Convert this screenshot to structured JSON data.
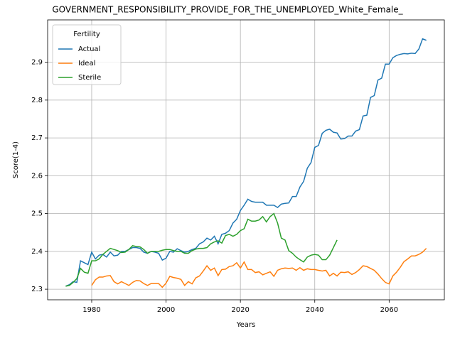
{
  "chart_data": {
    "type": "line",
    "title": "GOVERNMENT_RESPONSIBILITY_PROVIDE_FOR_THE_UNEMPLOYED_White_Female_",
    "xlabel": "Years",
    "ylabel": "Score(1-4)",
    "legend_title": "Fertility",
    "legend": "upper left",
    "grid": true,
    "xlim": [
      1968.15,
      2074.85
    ],
    "ylim": [
      2.272,
      3.012
    ],
    "xticks": [
      1980,
      2000,
      2020,
      2040,
      2060
    ],
    "yticks": [
      2.3,
      2.4,
      2.5,
      2.6,
      2.7,
      2.8,
      2.9
    ],
    "x": [
      1973,
      1974,
      1975,
      1976,
      1977,
      1978,
      1979,
      1980,
      1981,
      1982,
      1983,
      1984,
      1985,
      1986,
      1987,
      1988,
      1989,
      1990,
      1991,
      1992,
      1993,
      1994,
      1995,
      1996,
      1997,
      1998,
      1999,
      2000,
      2001,
      2002,
      2003,
      2004,
      2005,
      2006,
      2007,
      2008,
      2009,
      2010,
      2011,
      2012,
      2013,
      2014,
      2015,
      2016,
      2017,
      2018,
      2019,
      2020,
      2021,
      2022,
      2023,
      2024,
      2025,
      2026,
      2027,
      2028,
      2029,
      2030,
      2031,
      2032,
      2033,
      2034,
      2035,
      2036,
      2037,
      2038,
      2039,
      2040,
      2041,
      2042,
      2043,
      2044,
      2045,
      2046,
      2047,
      2048,
      2049,
      2050,
      2051,
      2052,
      2053,
      2054,
      2055,
      2056,
      2057,
      2058,
      2059,
      2060,
      2061,
      2062,
      2063,
      2064,
      2065,
      2066,
      2067,
      2068,
      2069,
      2070
    ],
    "series": [
      {
        "name": "Actual",
        "color": "#1f77b4",
        "values": [
          2.308,
          2.312,
          2.32,
          2.318,
          2.375,
          2.37,
          2.365,
          2.398,
          2.38,
          2.39,
          2.392,
          2.385,
          2.398,
          2.388,
          2.39,
          2.4,
          2.4,
          2.405,
          2.41,
          2.41,
          2.408,
          2.398,
          2.395,
          2.4,
          2.398,
          2.395,
          2.377,
          2.382,
          2.4,
          2.398,
          2.407,
          2.402,
          2.398,
          2.4,
          2.405,
          2.408,
          2.42,
          2.425,
          2.435,
          2.43,
          2.44,
          2.42,
          2.445,
          2.448,
          2.455,
          2.475,
          2.485,
          2.508,
          2.522,
          2.538,
          2.532,
          2.53,
          2.53,
          2.53,
          2.522,
          2.522,
          2.522,
          2.516,
          2.525,
          2.527,
          2.528,
          2.545,
          2.545,
          2.57,
          2.585,
          2.62,
          2.635,
          2.675,
          2.68,
          2.712,
          2.72,
          2.723,
          2.715,
          2.713,
          2.697,
          2.698,
          2.705,
          2.705,
          2.718,
          2.722,
          2.758,
          2.76,
          2.807,
          2.812,
          2.853,
          2.858,
          2.895,
          2.895,
          2.912,
          2.918,
          2.921,
          2.923,
          2.922,
          2.924,
          2.923,
          2.935,
          2.962,
          2.958
        ]
      },
      {
        "name": "Ideal",
        "color": "#ff7f0e",
        "values": [
          null,
          null,
          null,
          null,
          null,
          null,
          null,
          2.31,
          2.325,
          2.332,
          2.332,
          2.335,
          2.336,
          2.32,
          2.314,
          2.32,
          2.315,
          2.31,
          2.318,
          2.323,
          2.322,
          2.315,
          2.31,
          2.315,
          2.315,
          2.315,
          2.305,
          2.316,
          2.334,
          2.331,
          2.329,
          2.326,
          2.31,
          2.32,
          2.314,
          2.33,
          2.335,
          2.348,
          2.362,
          2.35,
          2.356,
          2.336,
          2.352,
          2.353,
          2.36,
          2.362,
          2.37,
          2.356,
          2.372,
          2.352,
          2.352,
          2.344,
          2.346,
          2.338,
          2.342,
          2.346,
          2.334,
          2.35,
          2.354,
          2.356,
          2.355,
          2.356,
          2.35,
          2.357,
          2.35,
          2.354,
          2.352,
          2.352,
          2.35,
          2.348,
          2.35,
          2.335,
          2.342,
          2.335,
          2.345,
          2.344,
          2.346,
          2.339,
          2.344,
          2.352,
          2.362,
          2.36,
          2.355,
          2.35,
          2.34,
          2.328,
          2.318,
          2.314,
          2.335,
          2.345,
          2.358,
          2.373,
          2.38,
          2.388,
          2.388,
          2.392,
          2.398,
          2.408
        ]
      },
      {
        "name": "Sterile",
        "color": "#2ca02c",
        "values": [
          2.308,
          2.31,
          2.318,
          2.328,
          2.355,
          2.345,
          2.342,
          2.375,
          2.375,
          2.38,
          2.392,
          2.4,
          2.408,
          2.405,
          2.402,
          2.397,
          2.398,
          2.405,
          2.415,
          2.413,
          2.412,
          2.405,
          2.395,
          2.4,
          2.4,
          2.4,
          2.403,
          2.405,
          2.405,
          2.402,
          2.4,
          2.4,
          2.395,
          2.395,
          2.402,
          2.406,
          2.408,
          2.408,
          2.41,
          2.42,
          2.425,
          2.428,
          2.422,
          2.442,
          2.445,
          2.44,
          2.445,
          2.455,
          2.46,
          2.485,
          2.48,
          2.48,
          2.483,
          2.492,
          2.478,
          2.492,
          2.5,
          2.475,
          2.435,
          2.43,
          2.402,
          2.395,
          2.385,
          2.378,
          2.372,
          2.385,
          2.39,
          2.392,
          2.39,
          2.378,
          2.378,
          2.39,
          2.41,
          2.43,
          null,
          null,
          null,
          null,
          null,
          null,
          null,
          null,
          null,
          null,
          null,
          null,
          null,
          null,
          null,
          null,
          null,
          null,
          null,
          null,
          null,
          null,
          null,
          null
        ]
      }
    ]
  }
}
